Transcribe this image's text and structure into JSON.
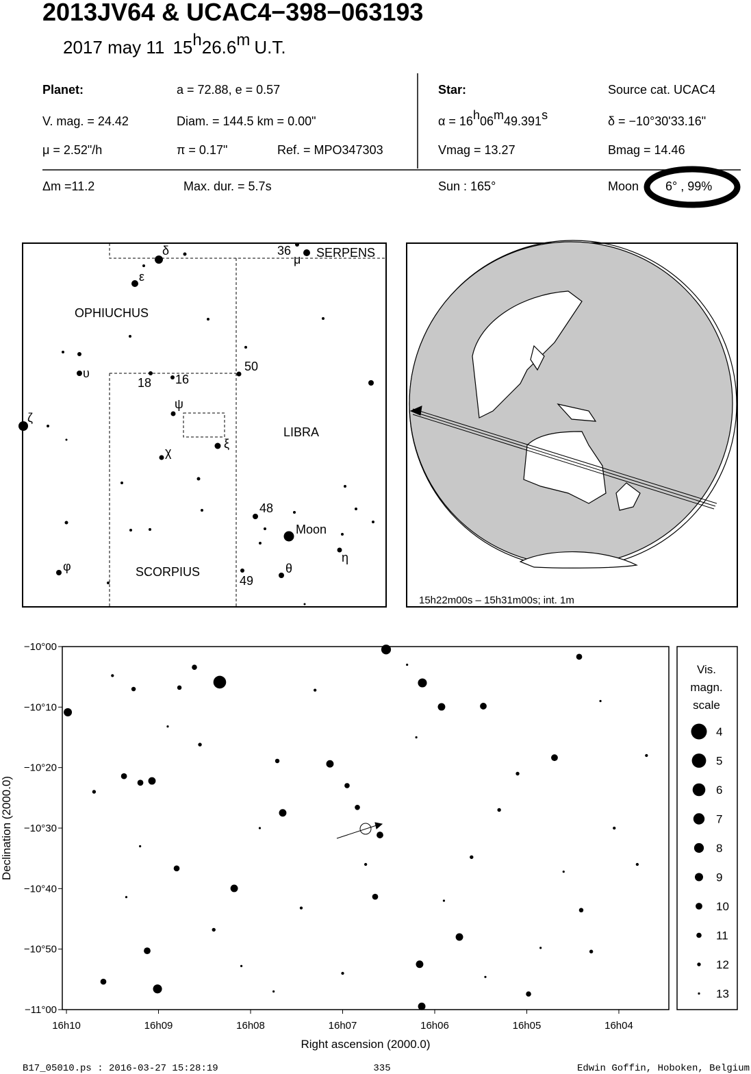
{
  "header": {
    "title": "2013JV64  &  UCAC4−398−063193",
    "date_parts": [
      "2017 may 11",
      "15",
      "h",
      "26.6",
      "m",
      "U.T."
    ]
  },
  "planet": {
    "label": "Planet:",
    "orbit": "a = 72.88, e = 0.57",
    "vmag": "V. mag. = 24.42",
    "diam": "Diam. = 144.5 km = 0.00\"",
    "mu": "μ =  2.52\"/h",
    "pi": "π =  0.17\"",
    "ref": "Ref. = MPO347303"
  },
  "star": {
    "label": "Star:",
    "source": "Source cat.  UCAC4",
    "alpha_parts": [
      "α = 16",
      "h",
      "06",
      "m",
      "49.391",
      "s"
    ],
    "delta": "δ = −10°30'33.16\"",
    "vmag": "Vmag = 13.27",
    "bmag": "Bmag = 14.46"
  },
  "event": {
    "dm": "Δm =11.2",
    "maxdur": "Max. dur. = 5.7s",
    "sun": "Sun : 165°",
    "moon_label": "Moon",
    "moon": "6° , 99%"
  },
  "finder": {
    "labels": [
      "δ",
      "ε",
      "36",
      "μ",
      "SERPENS",
      "OPHIUCHUS",
      "50",
      "υ",
      "18",
      "16",
      "ψ",
      "ζ",
      "LIBRA",
      "ξ",
      "χ",
      "48",
      "Moon",
      "η",
      "φ",
      "SCORPIUS",
      "θ",
      "49"
    ]
  },
  "earth": {
    "caption": "15h22m00s – 15h31m00s; int.  1m"
  },
  "chart_data": {
    "type": "scatter",
    "xlabel": "Right ascension (2000.0)",
    "ylabel": "Declination (2000.0)",
    "xlim": [
      10.045,
      3.457
    ],
    "ylim": [
      -11.0,
      -10.0
    ],
    "xticks": [
      {
        "value": 10,
        "label": "16h10"
      },
      {
        "value": 9,
        "label": "16h09"
      },
      {
        "value": 8,
        "label": "16h08"
      },
      {
        "value": 7,
        "label": "16h07"
      },
      {
        "value": 6,
        "label": "16h06"
      },
      {
        "value": 5,
        "label": "16h05"
      },
      {
        "value": 4,
        "label": "16h04"
      }
    ],
    "yticks": [
      {
        "value": -10.0,
        "label": "−10°00"
      },
      {
        "value": -10.1667,
        "label": "−10°10"
      },
      {
        "value": -10.3333,
        "label": "−10°20"
      },
      {
        "value": -10.5,
        "label": "−10°30"
      },
      {
        "value": -10.6667,
        "label": "−10°40"
      },
      {
        "value": -10.8333,
        "label": "−10°50"
      },
      {
        "value": -11.0,
        "label": "−11°00"
      }
    ],
    "color": "#000000",
    "x": [
      6.528,
      8.335,
      6.134,
      9.985,
      5.926,
      5.472,
      4.431,
      4.699,
      7.138,
      7.651,
      9.071,
      9.197,
      9.375,
      8.803,
      8.178,
      9.123,
      9.011,
      6.164,
      6.141,
      5.732,
      6.595,
      6.647,
      6.84,
      4.981,
      4.409,
      9.599,
      6.952,
      7.71,
      8.61,
      9.271,
      8.773,
      9.5,
      8.9,
      7.3,
      6.2,
      5.1,
      4.2,
      3.8,
      9.2,
      8.4,
      7.9,
      7.0,
      5.9,
      5.3,
      4.6,
      3.7,
      9.7,
      8.1,
      7.45,
      6.3,
      5.6,
      4.85,
      4.05,
      9.35,
      8.55,
      7.75,
      6.75,
      5.45,
      4.3
    ],
    "y": [
      -10.008,
      -10.098,
      -10.1,
      -10.181,
      -10.166,
      -10.164,
      -10.028,
      -10.306,
      -10.323,
      -10.458,
      -10.37,
      -10.375,
      -10.357,
      -10.611,
      -10.666,
      -10.838,
      -10.943,
      -10.875,
      -10.991,
      -10.8,
      -10.519,
      -10.689,
      -10.443,
      -10.957,
      -10.726,
      -10.923,
      -10.383,
      -10.315,
      -10.057,
      -10.117,
      -10.113,
      -10.08,
      -10.22,
      -10.12,
      -10.25,
      -10.35,
      -10.15,
      -10.6,
      -10.55,
      -10.78,
      -10.5,
      -10.9,
      -10.7,
      -10.45,
      -10.62,
      -10.3,
      -10.4,
      -10.88,
      -10.72,
      -10.05,
      -10.58,
      -10.83,
      -10.5,
      -10.69,
      -10.27,
      -10.95,
      -10.6,
      -10.91,
      -10.84
    ],
    "mag": [
      8,
      6,
      8.5,
      9,
      9.5,
      10,
      10.5,
      10,
      9.5,
      9.5,
      9.5,
      10.5,
      10.5,
      10.5,
      9.5,
      10,
      8.5,
      9.5,
      9.5,
      9.5,
      10,
      10.5,
      11,
      11,
      11.5,
      10.5,
      11,
      11.5,
      11,
      11.5,
      11.5,
      12.5,
      13,
      12.5,
      13,
      12,
      13,
      12.5,
      13,
      12,
      13,
      12.5,
      13,
      12,
      13,
      12.5,
      12,
      13,
      12.5,
      13,
      12,
      13,
      12.5,
      13,
      12,
      13,
      12.5,
      13,
      12
    ],
    "legend_title": [
      "Vis.",
      "magn.",
      "scale"
    ],
    "legend_mags": [
      4,
      5,
      6,
      7,
      8,
      9,
      10,
      11,
      12,
      13
    ]
  },
  "footer": {
    "file": "B17_05010.ps : 2016-03-27 15:28:19",
    "page": "335",
    "author": "Edwin Goffin, Hoboken, Belgium"
  }
}
